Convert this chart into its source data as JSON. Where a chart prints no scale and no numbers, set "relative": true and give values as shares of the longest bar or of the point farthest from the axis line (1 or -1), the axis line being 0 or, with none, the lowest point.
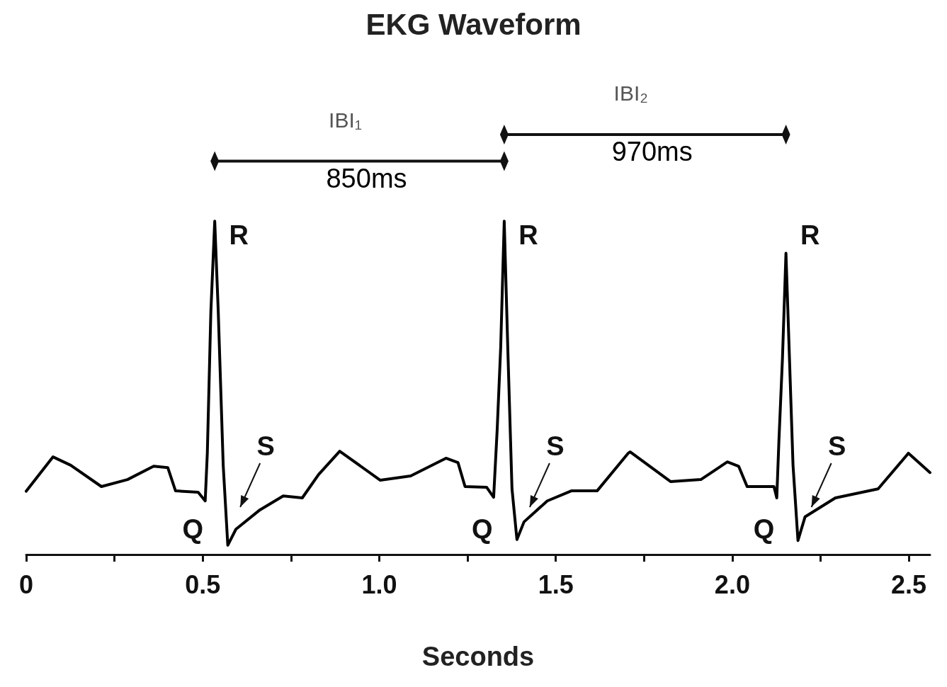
{
  "chart_data": {
    "type": "line",
    "title": "EKG Waveform",
    "xlabel": "Seconds",
    "relative": true,
    "marker": "none",
    "xlim": [
      0,
      2.56
    ],
    "xticks": [
      0,
      {
        "value": 0.25,
        "label": null
      },
      0.5,
      {
        "value": 0.75,
        "label": null
      },
      {
        "value": 1,
        "label": "1.0"
      },
      {
        "value": 1.25,
        "label": null
      },
      1.5,
      {
        "value": 1.75,
        "label": null
      },
      {
        "value": 2,
        "label": "2.0"
      },
      {
        "value": 2.25,
        "label": null
      },
      2.5
    ],
    "x": [
      0,
      0.076,
      0.126,
      0.213,
      0.287,
      0.361,
      0.401,
      0.423,
      0.487,
      0.507,
      0.513,
      0.523,
      0.534,
      0.544,
      0.558,
      0.571,
      0.594,
      0.662,
      0.728,
      0.782,
      0.828,
      0.888,
      1.003,
      1.089,
      1.189,
      1.223,
      1.243,
      1.304,
      1.324,
      1.334,
      1.344,
      1.354,
      1.364,
      1.376,
      1.39,
      1.41,
      1.476,
      1.544,
      1.617,
      1.705,
      1.711,
      1.825,
      1.911,
      1.986,
      2.018,
      2.042,
      2.118,
      2.126,
      2.132,
      2.142,
      2.152,
      2.162,
      2.172,
      2.186,
      2.206,
      2.292,
      2.413,
      2.499,
      2.56
    ],
    "series": [
      {
        "color": "#000000",
        "values": [
          0.19,
          0.293,
          0.268,
          0.204,
          0.225,
          0.265,
          0.261,
          0.191,
          0.187,
          0.161,
          0.304,
          0.728,
          1,
          0.728,
          0.268,
          0.028,
          0.076,
          0.134,
          0.176,
          0.17,
          0.24,
          0.31,
          0.223,
          0.236,
          0.289,
          0.276,
          0.204,
          0.202,
          0.172,
          0.374,
          0.622,
          1,
          0.622,
          0.197,
          0.045,
          0.098,
          0.161,
          0.191,
          0.191,
          0.304,
          0.308,
          0.219,
          0.225,
          0.278,
          0.265,
          0.204,
          0.204,
          0.17,
          0.34,
          0.586,
          0.904,
          0.586,
          0.268,
          0.042,
          0.113,
          0.17,
          0.197,
          0.304,
          0.246
        ]
      }
    ],
    "annotations": [
      "IBI₁",
      "850ms",
      "IBI₂",
      "970ms",
      "R",
      "R",
      "R",
      "Q",
      "Q",
      "Q",
      "S",
      "S",
      "S"
    ]
  }
}
